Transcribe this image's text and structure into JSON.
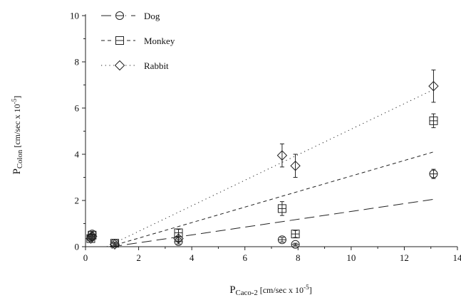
{
  "chart_data": {
    "type": "scatter",
    "xlim": [
      0,
      14
    ],
    "ylim": [
      0,
      10
    ],
    "x_ticks": [
      "0",
      "2",
      "4",
      "6",
      "8",
      "10",
      "12",
      "14"
    ],
    "y_ticks": [
      "0",
      "2",
      "4",
      "6",
      "8",
      "10"
    ],
    "xlabel": {
      "main": "P",
      "sub": "Caco-2",
      "rest": " [cm/sec x 10",
      "sup": "-5",
      "end": "]"
    },
    "ylabel": {
      "main": "P",
      "sub": "Colon",
      "rest": " [cm/sec x 10",
      "sup": "-5",
      "end": "]"
    },
    "legend_position": "top-left",
    "grid": false,
    "series": [
      {
        "name": "Dog",
        "marker": "circle",
        "line_style": "long-dash",
        "fit": {
          "x": [
            1.0,
            13.1
          ],
          "y": [
            0.0,
            2.05
          ]
        },
        "points": [
          {
            "x": 0.2,
            "y": 0.4,
            "err": 0.1
          },
          {
            "x": 0.25,
            "y": 0.55,
            "err": 0.1
          },
          {
            "x": 1.1,
            "y": 0.15,
            "err": 0.05
          },
          {
            "x": 3.5,
            "y": 0.22,
            "err": 0.1
          },
          {
            "x": 7.4,
            "y": 0.3,
            "err": 0.1
          },
          {
            "x": 7.9,
            "y": 0.1,
            "err": 0.05
          },
          {
            "x": 13.1,
            "y": 3.15,
            "err": 0.2
          }
        ]
      },
      {
        "name": "Monkey",
        "marker": "square",
        "line_style": "short-dash",
        "fit": {
          "x": [
            0.9,
            13.1
          ],
          "y": [
            0.0,
            4.1
          ]
        },
        "points": [
          {
            "x": 0.2,
            "y": 0.35,
            "err": 0.1
          },
          {
            "x": 0.25,
            "y": 0.5,
            "err": 0.1
          },
          {
            "x": 1.1,
            "y": 0.15,
            "err": 0.05
          },
          {
            "x": 3.5,
            "y": 0.6,
            "err": 0.15
          },
          {
            "x": 7.4,
            "y": 1.65,
            "err": 0.3
          },
          {
            "x": 7.9,
            "y": 0.55,
            "err": 0.15
          },
          {
            "x": 13.1,
            "y": 5.45,
            "err": 0.3
          }
        ]
      },
      {
        "name": "Rabbit",
        "marker": "diamond",
        "line_style": "dotted",
        "fit": {
          "x": [
            0.8,
            13.1
          ],
          "y": [
            0.0,
            6.8
          ]
        },
        "points": [
          {
            "x": 0.2,
            "y": 0.35,
            "err": 0.05
          },
          {
            "x": 0.25,
            "y": 0.45,
            "err": 0.05
          },
          {
            "x": 1.1,
            "y": 0.1,
            "err": 0.05
          },
          {
            "x": 3.5,
            "y": 0.35,
            "err": 0.1
          },
          {
            "x": 7.4,
            "y": 3.95,
            "err": 0.5
          },
          {
            "x": 7.9,
            "y": 3.5,
            "err": 0.5
          },
          {
            "x": 13.1,
            "y": 6.95,
            "err": 0.7
          }
        ]
      }
    ]
  }
}
